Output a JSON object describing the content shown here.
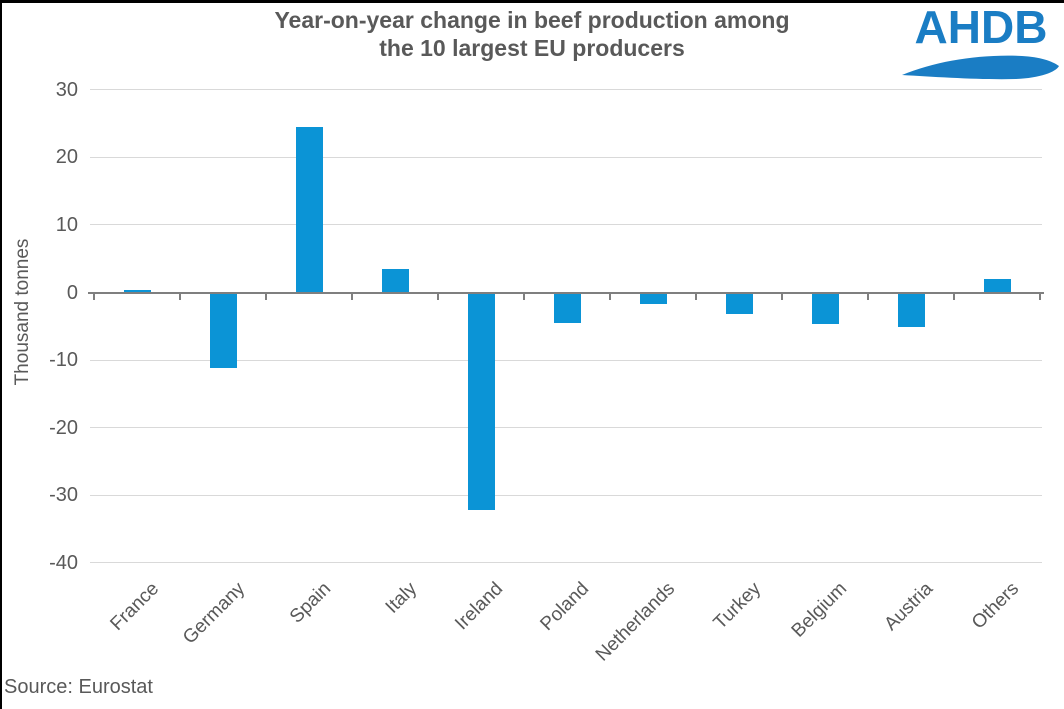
{
  "title": {
    "line1": "Year-on-year change in beef production among",
    "line2": "the 10 largest EU producers"
  },
  "logo": {
    "text": "AHDB"
  },
  "source_note": "Source: Eurostat",
  "chart_data": {
    "type": "bar",
    "title": "Year-on-year change in beef production among the 10 largest EU producers",
    "categories": [
      "France",
      "Germany",
      "Spain",
      "Italy",
      "Ireland",
      "Poland",
      "Netherlands",
      "Turkey",
      "Belgium",
      "Austria",
      "Others"
    ],
    "values": [
      0.4,
      -11,
      24.5,
      3.5,
      -32,
      -4.3,
      -1.5,
      -3,
      -4.5,
      -5,
      2
    ],
    "xlabel": "",
    "ylabel": "Thousand tonnes",
    "ylim": [
      -40,
      30
    ],
    "yticks": [
      30,
      20,
      10,
      0,
      -10,
      -20,
      -30,
      -40
    ],
    "grid": "horizontal gridlines on",
    "legend": "none",
    "bar_color": "#0b94d6",
    "gridline_color": "#d9d9d9",
    "axis_color": "#7f7f7f",
    "text_color": "#595959",
    "logo_color": "#1a7dc4"
  }
}
